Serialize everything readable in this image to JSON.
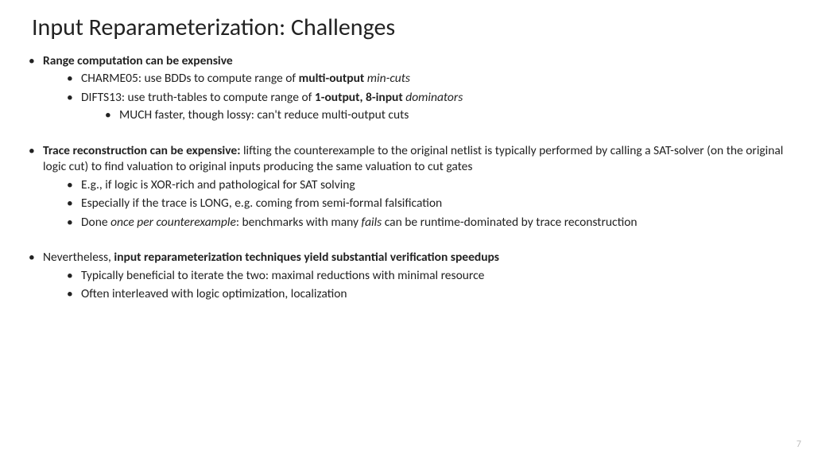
{
  "title": "Input Reparameterization: Challenges",
  "page_number": "7",
  "colors": {
    "text": "#222222",
    "page_num": "#bfbfbf",
    "bg": "#ffffff"
  },
  "fonts": {
    "title_size_pt": 30,
    "body_size_pt": 15.5
  },
  "b1": {
    "head_b": "Range computation can be expensive",
    "sub1_a": "CHARME05: use BDDs to compute range of ",
    "sub1_b": "multi-output",
    "sub1_c": " ",
    "sub1_d": "min-cuts",
    "sub2_a": "DIFTS13: use truth-tables to compute range of ",
    "sub2_b": "1-output, 8-input",
    "sub2_c": " ",
    "sub2_d": "dominators",
    "sub2_sub1": "MUCH faster, though lossy: can't reduce multi-output cuts"
  },
  "b2": {
    "head_b": "Trace reconstruction can be expensive:",
    "head_rest": " lifting the counterexample to the original netlist is typically performed by calling a SAT-solver (on the original logic cut) to find valuation to original inputs producing the same valuation to cut gates",
    "sub1": "E.g., if logic is XOR-rich and pathological for SAT solving",
    "sub2": "Especially if the trace is LONG, e.g. coming from semi-formal falsification",
    "sub3_a": "Done ",
    "sub3_b": "once per counterexample",
    "sub3_c": ": benchmarks with many ",
    "sub3_d": "fails",
    "sub3_e": " can be runtime-dominated by trace reconstruction"
  },
  "b3": {
    "head_a": "Nevertheless, ",
    "head_b": "input reparameterization techniques yield substantial verification speedups",
    "sub1": "Typically beneficial to iterate the two: maximal reductions with minimal resource",
    "sub2": "Often interleaved with logic optimization, localization"
  }
}
